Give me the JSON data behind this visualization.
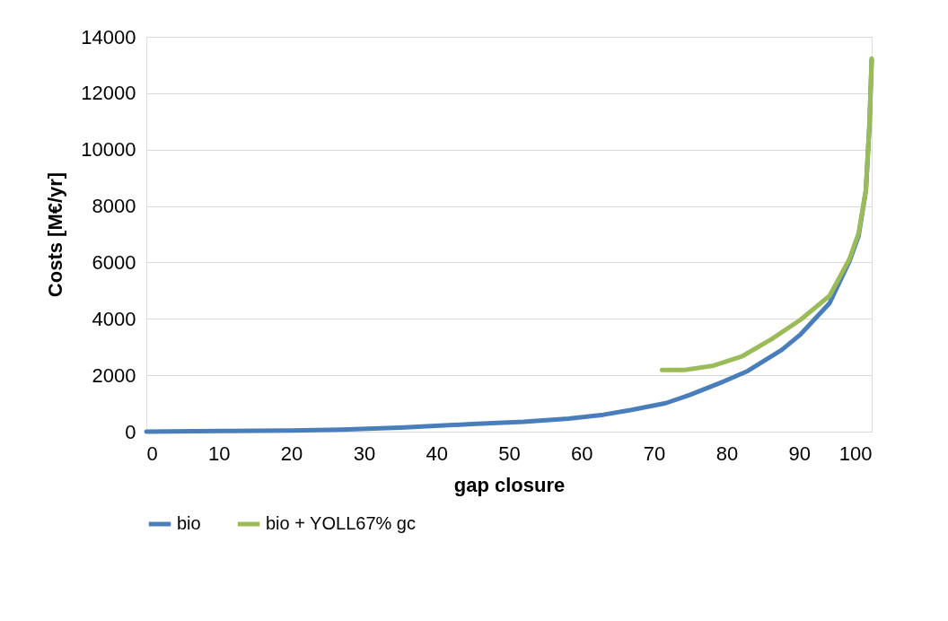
{
  "chart_data": {
    "type": "line",
    "xlabel": "gap closure",
    "ylabel": "Costs [M€/yr]",
    "xlim": [
      0,
      100
    ],
    "xticks": [
      0,
      10,
      20,
      30,
      40,
      50,
      60,
      70,
      80,
      90,
      100
    ],
    "ylim": [
      0,
      14000
    ],
    "yticks": [
      0,
      2000,
      4000,
      6000,
      8000,
      10000,
      12000,
      14000
    ],
    "grid": "y",
    "legend": "bottom",
    "marker": "none",
    "line_style": "solid",
    "series": [
      {
        "name": "bio",
        "color": "#4a7ebb",
        "x": [
          0,
          10,
          20,
          26.9,
          35,
          44.9,
          52,
          58.2,
          63,
          66.9,
          71.6,
          74.9,
          79.6,
          82.9,
          87.6,
          90.2,
          94.2,
          96.9,
          98.2,
          99.2,
          99.7,
          100
        ],
        "values": [
          0,
          20,
          40,
          70,
          140,
          270,
          350,
          460,
          600,
          770,
          1010,
          1300,
          1780,
          2150,
          2900,
          3450,
          4560,
          6020,
          6950,
          8550,
          10900,
          13200
        ]
      },
      {
        "name": "bio + YOLL67% gc",
        "color": "#9bbb59",
        "x": [
          71.1,
          74.2,
          78.2,
          82.2,
          86.2,
          90.2,
          94.2,
          96.9,
          98.2,
          99.2,
          99.7,
          100
        ],
        "values": [
          2190,
          2190,
          2340,
          2680,
          3280,
          3970,
          4820,
          6100,
          7040,
          8580,
          10970,
          13230
        ]
      }
    ]
  }
}
